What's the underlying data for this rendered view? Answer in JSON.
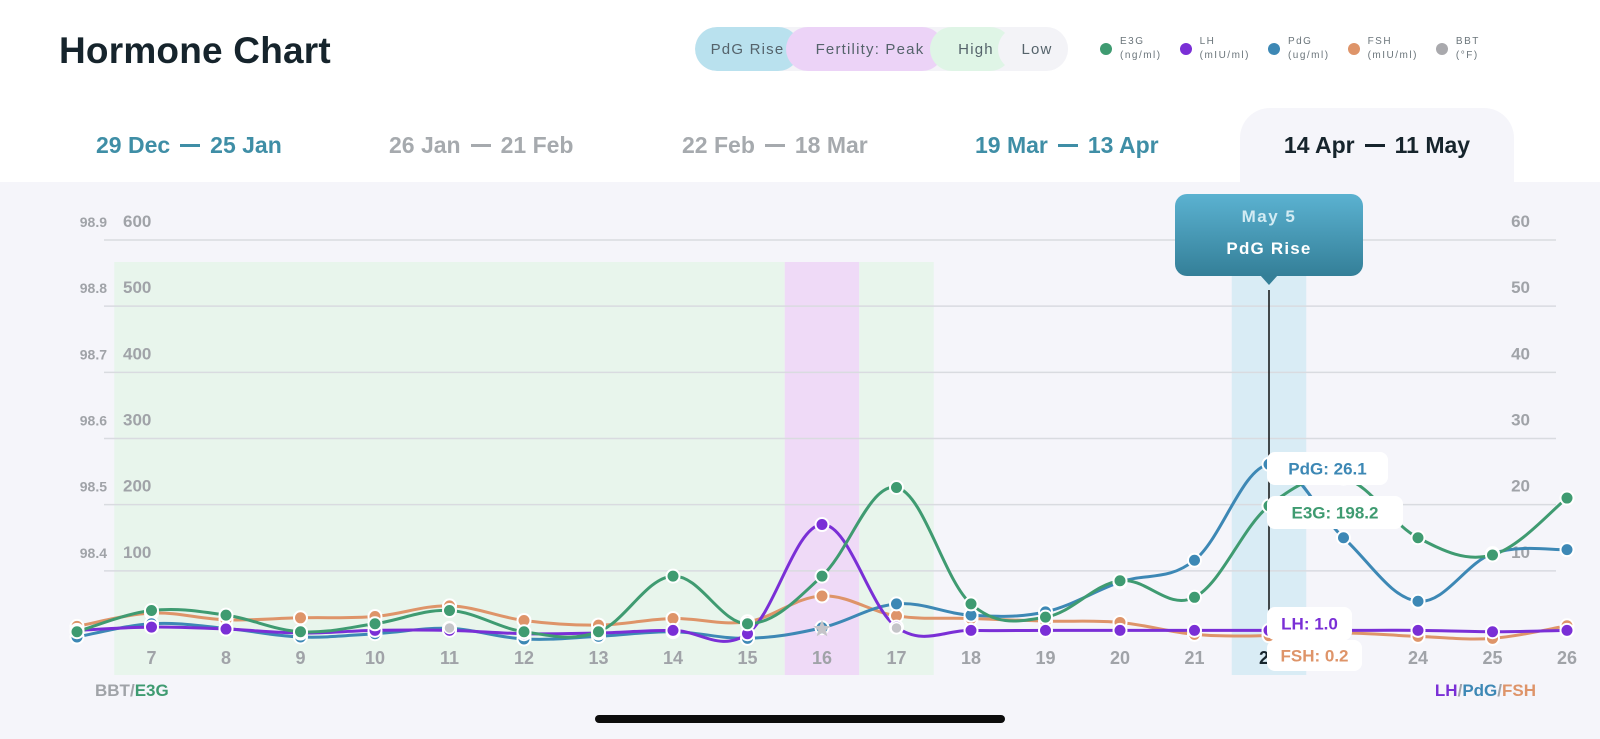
{
  "header": {
    "title": "Hormone Chart",
    "phases": [
      {
        "label": "PdG Rise",
        "color": "#b9e1ee"
      },
      {
        "label": "Fertility: Peak",
        "color": "#ecd3f7"
      },
      {
        "label": "High",
        "color": "#dff5e6"
      },
      {
        "label": "Low",
        "color": "#f3f3f7"
      }
    ],
    "hormones": [
      {
        "name": "E3G",
        "unit": "(ng/ml)",
        "color": "#3f9b71"
      },
      {
        "name": "LH",
        "unit": "(mIU/ml)",
        "color": "#7a2fd6"
      },
      {
        "name": "PdG",
        "unit": "(ug/ml)",
        "color": "#3d88b5"
      },
      {
        "name": "FSH",
        "unit": "(mIU/ml)",
        "color": "#de9469"
      },
      {
        "name": "BBT",
        "unit": "(°F)",
        "color": "#a9a9ad"
      }
    ]
  },
  "tabs": [
    {
      "start": "29 Dec",
      "end": "25 Jan",
      "color": "#3f8ea6"
    },
    {
      "start": "26 Jan",
      "end": "21 Feb",
      "color": "#a6aaae"
    },
    {
      "start": "22 Feb",
      "end": "18 Mar",
      "color": "#a6aaae"
    },
    {
      "start": "19 Mar",
      "end": "13 Apr",
      "color": "#3f8ea6"
    },
    {
      "start": "14 Apr",
      "end": "11 May",
      "color": "#16242c",
      "active": true
    }
  ],
  "chart_data": {
    "type": "line",
    "x": [
      6,
      7,
      8,
      9,
      10,
      11,
      12,
      13,
      14,
      15,
      16,
      17,
      18,
      19,
      20,
      21,
      22,
      23,
      24,
      25,
      26
    ],
    "x_tick_labels": [
      "7",
      "8",
      "9",
      "10",
      "11",
      "12",
      "13",
      "14",
      "15",
      "16",
      "17",
      "18",
      "19",
      "20",
      "21",
      "22",
      "23",
      "24",
      "25",
      "26"
    ],
    "highlight_x": "22",
    "left_axis_bbt": {
      "ticks": [
        "98.9",
        "98.8",
        "98.7",
        "98.6",
        "98.5",
        "98.4"
      ],
      "range": [
        98.3,
        98.9
      ]
    },
    "left_axis_e3g": {
      "ticks": [
        "600",
        "500",
        "400",
        "300",
        "200",
        "100"
      ],
      "range": [
        0,
        600
      ]
    },
    "right_axis": {
      "ticks": [
        "60",
        "50",
        "40",
        "30",
        "20",
        "10"
      ],
      "range": [
        0,
        60
      ]
    },
    "left_axis_label": {
      "part1": "BBT",
      "sep": "/",
      "part2": "E3G"
    },
    "right_axis_label": {
      "part1": "LH",
      "sep1": "/",
      "part2": "PdG",
      "sep2": "/",
      "part3": "FSH"
    },
    "phase_bands": [
      {
        "phase": "High",
        "from": 6.5,
        "to": 15.5,
        "color": "#e8f5ec"
      },
      {
        "phase": "Fertility: Peak",
        "from": 15.5,
        "to": 16.5,
        "color": "#efdaf7"
      },
      {
        "phase": "High",
        "from": 16.5,
        "to": 17.5,
        "color": "#e8f5ec"
      },
      {
        "phase": "PdG Rise",
        "from": 21.5,
        "to": 22.5,
        "color": "#d9ecf5"
      }
    ],
    "series": [
      {
        "name": "E3G",
        "axis": "left",
        "color": "#3f9b71",
        "values": [
          8,
          40,
          33,
          8,
          20,
          40,
          8,
          8,
          92,
          20,
          92,
          226,
          50,
          30,
          85,
          60,
          198.2,
          240,
          150,
          124,
          210
        ]
      },
      {
        "name": "LH",
        "axis": "right",
        "color": "#7a2fd6",
        "values": [
          1,
          1.5,
          1.2,
          0.6,
          1.0,
          1.0,
          0.5,
          0.6,
          1.0,
          0.5,
          17,
          1.5,
          1.0,
          1.0,
          1.0,
          1.0,
          1.0,
          1.0,
          1.0,
          0.8,
          1.0
        ]
      },
      {
        "name": "PdG",
        "axis": "right",
        "color": "#3d88b5",
        "values": [
          0,
          2,
          1.3,
          0,
          0.5,
          1.3,
          -0.3,
          0.1,
          0.8,
          -0.2,
          1.4,
          5,
          3.3,
          3.8,
          8.3,
          11.6,
          26.1,
          15,
          5.4,
          12.6,
          13.2
        ]
      },
      {
        "name": "FSH",
        "axis": "right",
        "color": "#de9469",
        "values": [
          1.6,
          3.6,
          2.6,
          2.9,
          3.1,
          4.7,
          2.5,
          1.8,
          2.8,
          2.3,
          6.2,
          3.2,
          2.8,
          2.4,
          2.2,
          0.4,
          0.2,
          0.6,
          0.1,
          -0.2,
          1.7
        ]
      },
      {
        "name": "BBT",
        "axis": "bbt",
        "color": "#a9a9ad",
        "marker_x": [
          11,
          16,
          17
        ]
      }
    ],
    "tooltip": {
      "date": "May 5",
      "phase": "PdG Rise",
      "x": 22
    },
    "value_labels": [
      {
        "text": "PdG: 26.1",
        "series": "PdG",
        "value": 26.1
      },
      {
        "text": "E3G: 198.2",
        "series": "E3G",
        "value": 198.2
      },
      {
        "text": "LH: 1.0",
        "series": "LH",
        "value": 1.0
      },
      {
        "text": "FSH: 0.2",
        "series": "FSH",
        "value": 0.2
      }
    ]
  }
}
